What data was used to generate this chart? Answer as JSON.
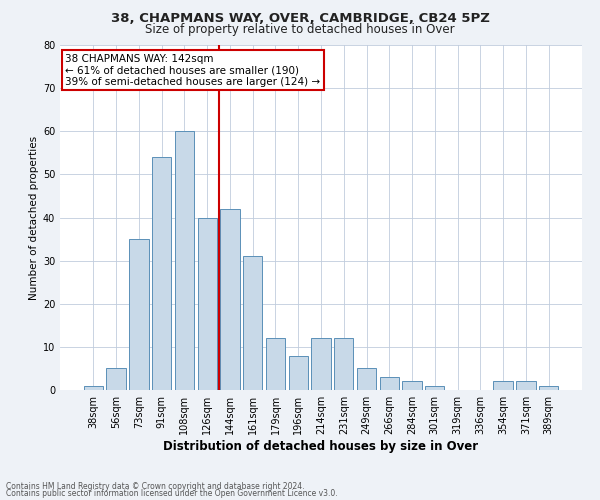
{
  "title": "38, CHAPMANS WAY, OVER, CAMBRIDGE, CB24 5PZ",
  "subtitle": "Size of property relative to detached houses in Over",
  "xlabel": "Distribution of detached houses by size in Over",
  "ylabel": "Number of detached properties",
  "categories": [
    "38sqm",
    "56sqm",
    "73sqm",
    "91sqm",
    "108sqm",
    "126sqm",
    "144sqm",
    "161sqm",
    "179sqm",
    "196sqm",
    "214sqm",
    "231sqm",
    "249sqm",
    "266sqm",
    "284sqm",
    "301sqm",
    "319sqm",
    "336sqm",
    "354sqm",
    "371sqm",
    "389sqm"
  ],
  "values": [
    1,
    5,
    35,
    54,
    60,
    40,
    42,
    31,
    12,
    8,
    12,
    12,
    5,
    3,
    2,
    1,
    0,
    0,
    2,
    2,
    1
  ],
  "bar_color": "#c8d9e8",
  "bar_edge_color": "#5a90b8",
  "line_color": "#cc0000",
  "line_x_index": 5.5,
  "property_label": "38 CHAPMANS WAY: 142sqm",
  "annotation_line1": "← 61% of detached houses are smaller (190)",
  "annotation_line2": "39% of semi-detached houses are larger (124) →",
  "annotation_box_color": "#ffffff",
  "annotation_box_edge": "#cc0000",
  "ylim": [
    0,
    80
  ],
  "yticks": [
    0,
    10,
    20,
    30,
    40,
    50,
    60,
    70,
    80
  ],
  "footer1": "Contains HM Land Registry data © Crown copyright and database right 2024.",
  "footer2": "Contains public sector information licensed under the Open Government Licence v3.0.",
  "bg_color": "#eef2f7",
  "plot_bg_color": "#ffffff",
  "grid_color": "#c0ccdd",
  "title_fontsize": 9.5,
  "subtitle_fontsize": 8.5,
  "xlabel_fontsize": 8.5,
  "ylabel_fontsize": 7.5,
  "tick_fontsize": 7,
  "annotation_fontsize": 7.5,
  "footer_fontsize": 5.5
}
